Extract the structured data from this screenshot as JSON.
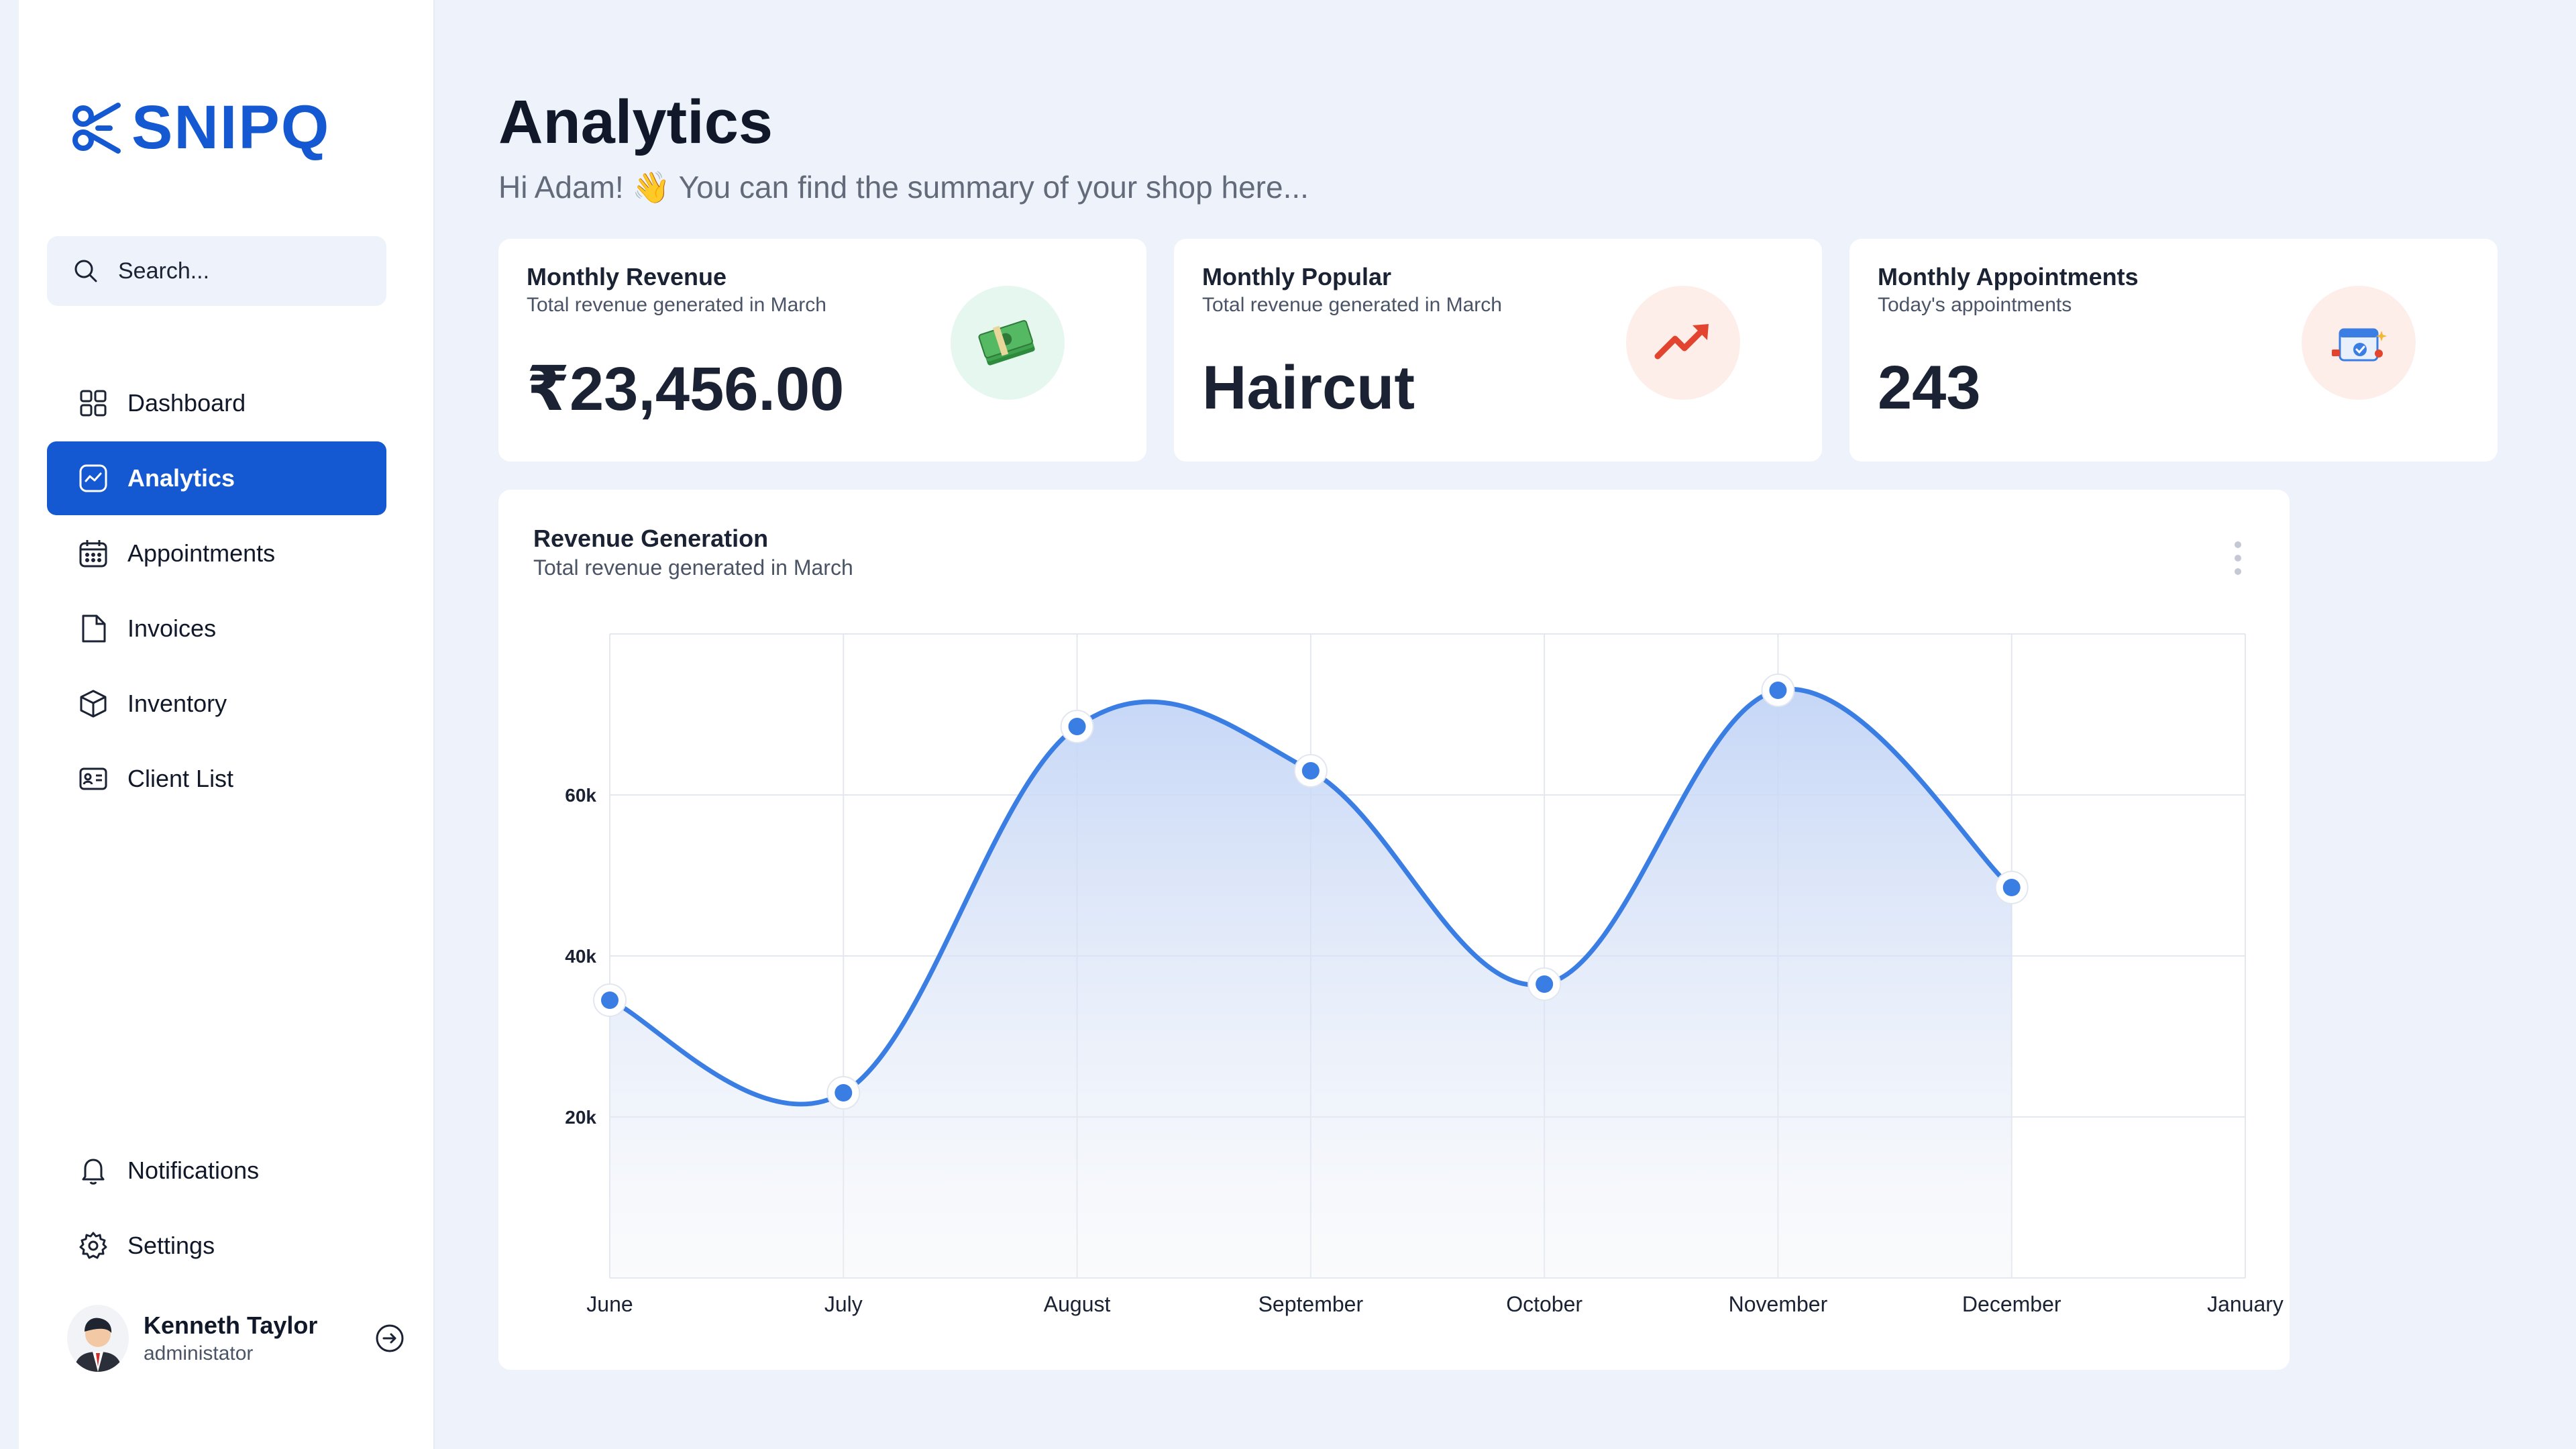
{
  "sidebar": {
    "logo_text": "SNIPQ",
    "search_placeholder": "Search...",
    "nav_items": [
      {
        "label": "Dashboard",
        "icon": "grid-icon"
      },
      {
        "label": "Analytics",
        "icon": "analytics-icon",
        "active": true
      },
      {
        "label": "Appointments",
        "icon": "calendar-icon"
      },
      {
        "label": "Invoices",
        "icon": "file-icon"
      },
      {
        "label": "Inventory",
        "icon": "box-icon"
      },
      {
        "label": "Client List",
        "icon": "id-card-icon"
      }
    ],
    "bottom_items": [
      {
        "label": "Notifications",
        "icon": "bell-icon"
      },
      {
        "label": "Settings",
        "icon": "gear-icon"
      }
    ],
    "user": {
      "name": "Kenneth Taylor",
      "role": "administator"
    }
  },
  "header": {
    "title": "Analytics",
    "subtitle": "Hi Adam! 👋 You can find the summary of your shop here..."
  },
  "cards": [
    {
      "title": "Monthly Revenue",
      "subtitle": "Total revenue generated in March",
      "value": "₹23,456.00",
      "icon": "money-icon",
      "icon_bg": "#e5f7ee"
    },
    {
      "title": "Monthly Popular",
      "subtitle": "Total revenue generated in March",
      "value": "Haircut",
      "icon": "trending-up-icon",
      "icon_bg": "#fdeeea"
    },
    {
      "title": "Monthly Appointments",
      "subtitle": "Today's appointments",
      "value": "243",
      "icon": "calendar-check-icon",
      "icon_bg": "#fdeeea"
    }
  ],
  "chart": {
    "title": "Revenue Generation",
    "subtitle": "Total revenue generated in March"
  },
  "colors": {
    "accent": "#1459d1",
    "line": "#3a7ee4",
    "background": "#eef3fb"
  },
  "chart_data": {
    "type": "area",
    "categories": [
      "June",
      "July",
      "August",
      "September",
      "October",
      "November",
      "December",
      "January"
    ],
    "values": [
      34500,
      23000,
      68500,
      63000,
      36500,
      73000,
      48500,
      null
    ],
    "ylim": [
      0,
      80000
    ],
    "yticks": [
      20000,
      40000,
      60000
    ],
    "ytick_labels": [
      "20k",
      "40k",
      "60k"
    ],
    "grid": true
  }
}
